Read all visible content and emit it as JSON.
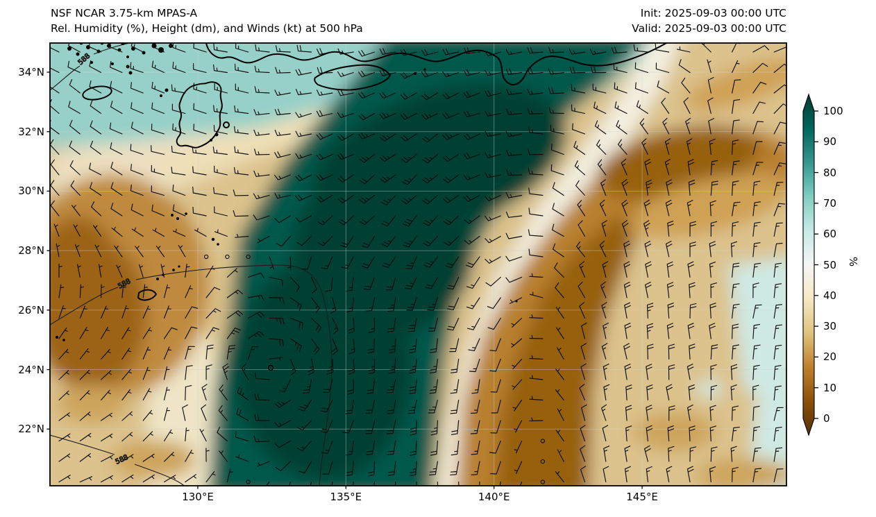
{
  "header": {
    "model_line": "NSF NCAR 3.75-km MPAS-A",
    "field_line": "Rel. Humidity (%), Height (dm), and Winds (kt) at 500 hPa",
    "init_line": "Init: 2025-09-03 00:00 UTC",
    "valid_line": "Valid: 2025-09-03 00:00 UTC"
  },
  "chart_data": {
    "type": "heatmap",
    "title": "Rel. Humidity (%), Height (dm), and Winds (kt) at 500 hPa",
    "projection": "lat-lon map, East Asia / Northwest Pacific",
    "x_axis": {
      "ticks": [
        130,
        135,
        140,
        145
      ],
      "tick_labels": [
        "130°E",
        "135°E",
        "140°E",
        "145°E"
      ],
      "range_deg": [
        125.0,
        149.9
      ]
    },
    "y_axis": {
      "ticks": [
        34,
        32,
        30,
        28,
        26,
        24,
        22
      ],
      "tick_labels": [
        "34°N",
        "32°N",
        "30°N",
        "28°N",
        "26°N",
        "24°N",
        "22°N"
      ],
      "range_deg": [
        20.1,
        35.0
      ]
    },
    "colorbar": {
      "label": "%",
      "ticks": [
        0,
        10,
        20,
        30,
        40,
        50,
        60,
        70,
        80,
        90,
        100
      ],
      "tick_labels": [
        "0",
        "10",
        "20",
        "30",
        "40",
        "50",
        "60",
        "70",
        "80",
        "90",
        "100"
      ],
      "range": [
        0,
        100
      ],
      "colormap": "BrBG",
      "extend": "both",
      "stops": [
        "#543005",
        "#8c510a",
        "#bf812d",
        "#dfc27d",
        "#f6e8c3",
        "#f5f5f5",
        "#c7eae5",
        "#80cdc1",
        "#35978f",
        "#01665e",
        "#003c30"
      ]
    },
    "contours": {
      "field": "500 hPa geopotential height (dm)",
      "label": "588",
      "labeled_instances": 3
    },
    "wind": {
      "units": "kt",
      "symbol": "barbs",
      "cyclone_center_lonlat": [
        132.5,
        24.1
      ],
      "cyclone_rotation": "cyclonic (counterclockwise)",
      "typical_speeds_kt": [
        5,
        35
      ]
    },
    "humidity_regions": [
      {
        "name": "moist-plume",
        "rh_percent": 95,
        "extent": "lon 131.5-137.5, lat 20-35, curving northeast along south Japan"
      },
      {
        "name": "moist-band-top",
        "rh_percent": 78,
        "extent": "along 34-35N from 125E to 135E"
      },
      {
        "name": "cyclone-core",
        "rh_percent": 100,
        "extent": "around 132.5E 24N"
      },
      {
        "name": "dry-band-east",
        "rh_percent": 15,
        "extent": "arc from 139E 33N down through 140-141E to south edge"
      },
      {
        "name": "dry-blob-west",
        "rh_percent": 25,
        "extent": "lon 125-129E, lat 25-28.5N"
      },
      {
        "name": "dry-southeast",
        "rh_percent": 35,
        "extent": "lon 141-150E, lat 20-30N"
      },
      {
        "name": "light-moist-southeast-edge",
        "rh_percent": 60,
        "extent": "near 149E, lat 22-28N"
      }
    ]
  },
  "colors": {
    "figure_bg": "#ffffff",
    "spine": "#000000",
    "coastline": "#000000",
    "contour": "#1c1c1c",
    "barb": "#0d0d0d",
    "gridline": "rgba(205,210,210,0.45)",
    "base": "#dcc28c",
    "topTeal": "#96d0c8",
    "topLeftPale": "#ecdfc0",
    "coastalBand": "#eedfb6",
    "plume": "#06584c",
    "plumeCore": "#013f33",
    "whiteGap": "#f3efe0",
    "westGap": "#efe5c6",
    "leftBrown": "#bf8a3d",
    "leftBrownCore": "#9c6315",
    "rightBand": "#b8802f",
    "rightBandCore": "#96600f",
    "lightTealSE": "#cfe9e3",
    "paleBlue": "#d2ebe7",
    "tanPatch": "#cda45c",
    "streak": "#cfa155"
  }
}
